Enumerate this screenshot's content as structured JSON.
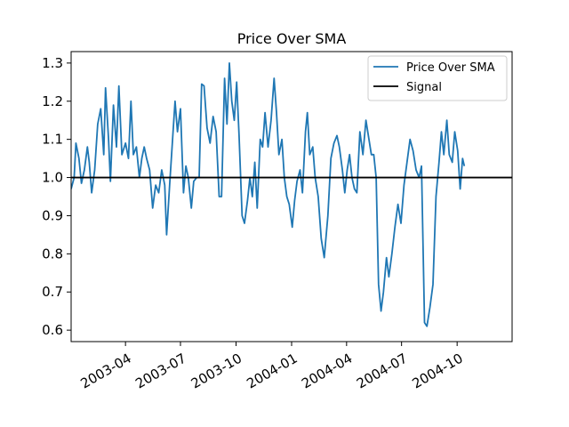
{
  "chart_data": {
    "type": "line",
    "title": "Price Over SMA",
    "xlabel": "",
    "ylabel": "",
    "x_axis_type": "date",
    "xlim": [
      "2003-01-01",
      "2004-12-31"
    ],
    "ylim": [
      0.57,
      1.33
    ],
    "x_ticks": [
      "2003-04",
      "2003-07",
      "2003-10",
      "2004-01",
      "2004-04",
      "2004-07",
      "2004-10"
    ],
    "y_ticks": [
      "0.6",
      "0.7",
      "0.8",
      "0.9",
      "1.0",
      "1.1",
      "1.2",
      "1.3"
    ],
    "grid": false,
    "legend_position": "top-right",
    "series": [
      {
        "name": "Price Over SMA",
        "color": "#1f77b4",
        "points": [
          [
            "2003-01-01",
            0.97
          ],
          [
            "2003-01-06",
            1.0
          ],
          [
            "2003-01-09",
            1.09
          ],
          [
            "2003-01-14",
            1.05
          ],
          [
            "2003-01-18",
            0.985
          ],
          [
            "2003-01-23",
            1.02
          ],
          [
            "2003-01-28",
            1.08
          ],
          [
            "2003-01-31",
            1.04
          ],
          [
            "2003-02-04",
            0.96
          ],
          [
            "2003-02-09",
            1.02
          ],
          [
            "2003-02-14",
            1.14
          ],
          [
            "2003-02-19",
            1.18
          ],
          [
            "2003-02-24",
            1.06
          ],
          [
            "2003-02-27",
            1.235
          ],
          [
            "2003-03-04",
            1.1
          ],
          [
            "2003-03-07",
            0.99
          ],
          [
            "2003-03-12",
            1.19
          ],
          [
            "2003-03-17",
            1.08
          ],
          [
            "2003-03-21",
            1.24
          ],
          [
            "2003-03-26",
            1.06
          ],
          [
            "2003-04-01",
            1.09
          ],
          [
            "2003-04-06",
            1.05
          ],
          [
            "2003-04-10",
            1.2
          ],
          [
            "2003-04-14",
            1.06
          ],
          [
            "2003-04-19",
            1.08
          ],
          [
            "2003-04-24",
            1.0
          ],
          [
            "2003-04-28",
            1.05
          ],
          [
            "2003-05-02",
            1.08
          ],
          [
            "2003-05-06",
            1.05
          ],
          [
            "2003-05-11",
            1.02
          ],
          [
            "2003-05-16",
            0.92
          ],
          [
            "2003-05-21",
            0.98
          ],
          [
            "2003-05-26",
            0.96
          ],
          [
            "2003-05-31",
            1.02
          ],
          [
            "2003-06-05",
            0.98
          ],
          [
            "2003-06-08",
            0.85
          ],
          [
            "2003-06-13",
            0.98
          ],
          [
            "2003-06-18",
            1.1
          ],
          [
            "2003-06-22",
            1.2
          ],
          [
            "2003-06-26",
            1.12
          ],
          [
            "2003-07-01",
            1.18
          ],
          [
            "2003-07-06",
            0.96
          ],
          [
            "2003-07-10",
            1.03
          ],
          [
            "2003-07-14",
            1.0
          ],
          [
            "2003-07-19",
            0.92
          ],
          [
            "2003-07-23",
            0.99
          ],
          [
            "2003-07-28",
            1.0
          ],
          [
            "2003-08-01",
            1.0
          ],
          [
            "2003-08-05",
            1.245
          ],
          [
            "2003-08-09",
            1.24
          ],
          [
            "2003-08-14",
            1.13
          ],
          [
            "2003-08-19",
            1.09
          ],
          [
            "2003-08-24",
            1.16
          ],
          [
            "2003-08-29",
            1.12
          ],
          [
            "2003-09-03",
            0.95
          ],
          [
            "2003-09-07",
            0.95
          ],
          [
            "2003-09-12",
            1.26
          ],
          [
            "2003-09-16",
            1.14
          ],
          [
            "2003-09-20",
            1.3
          ],
          [
            "2003-09-24",
            1.2
          ],
          [
            "2003-09-28",
            1.15
          ],
          [
            "2003-10-02",
            1.25
          ],
          [
            "2003-10-06",
            1.11
          ],
          [
            "2003-10-11",
            0.9
          ],
          [
            "2003-10-15",
            0.88
          ],
          [
            "2003-10-20",
            0.94
          ],
          [
            "2003-10-24",
            1.0
          ],
          [
            "2003-10-28",
            0.95
          ],
          [
            "2003-11-01",
            1.04
          ],
          [
            "2003-11-05",
            0.92
          ],
          [
            "2003-11-10",
            1.1
          ],
          [
            "2003-11-14",
            1.08
          ],
          [
            "2003-11-18",
            1.17
          ],
          [
            "2003-11-23",
            1.08
          ],
          [
            "2003-11-28",
            1.15
          ],
          [
            "2003-12-03",
            1.26
          ],
          [
            "2003-12-07",
            1.17
          ],
          [
            "2003-12-11",
            1.06
          ],
          [
            "2003-12-16",
            1.1
          ],
          [
            "2003-12-20",
            1.0
          ],
          [
            "2003-12-24",
            0.95
          ],
          [
            "2003-12-28",
            0.93
          ],
          [
            "2004-01-02",
            0.87
          ],
          [
            "2004-01-06",
            0.94
          ],
          [
            "2004-01-10",
            0.99
          ],
          [
            "2004-01-15",
            1.02
          ],
          [
            "2004-01-19",
            0.96
          ],
          [
            "2004-01-24",
            1.12
          ],
          [
            "2004-01-27",
            1.17
          ],
          [
            "2004-01-31",
            1.06
          ],
          [
            "2004-02-05",
            1.08
          ],
          [
            "2004-02-09",
            1.0
          ],
          [
            "2004-02-14",
            0.95
          ],
          [
            "2004-02-19",
            0.84
          ],
          [
            "2004-02-24",
            0.79
          ],
          [
            "2004-03-01",
            0.9
          ],
          [
            "2004-03-06",
            1.05
          ],
          [
            "2004-03-11",
            1.09
          ],
          [
            "2004-03-16",
            1.11
          ],
          [
            "2004-03-20",
            1.08
          ],
          [
            "2004-03-25",
            1.02
          ],
          [
            "2004-03-29",
            0.96
          ],
          [
            "2004-04-02",
            1.02
          ],
          [
            "2004-04-06",
            1.06
          ],
          [
            "2004-04-10",
            1.0
          ],
          [
            "2004-04-14",
            0.97
          ],
          [
            "2004-04-18",
            0.96
          ],
          [
            "2004-04-23",
            1.12
          ],
          [
            "2004-04-28",
            1.06
          ],
          [
            "2004-05-03",
            1.15
          ],
          [
            "2004-05-08",
            1.1
          ],
          [
            "2004-05-12",
            1.06
          ],
          [
            "2004-05-16",
            1.06
          ],
          [
            "2004-05-20",
            1.0
          ],
          [
            "2004-05-24",
            0.72
          ],
          [
            "2004-05-28",
            0.65
          ],
          [
            "2004-06-01",
            0.7
          ],
          [
            "2004-06-06",
            0.79
          ],
          [
            "2004-06-10",
            0.74
          ],
          [
            "2004-06-15",
            0.8
          ],
          [
            "2004-06-20",
            0.87
          ],
          [
            "2004-06-25",
            0.93
          ],
          [
            "2004-06-30",
            0.88
          ],
          [
            "2004-07-05",
            0.98
          ],
          [
            "2004-07-10",
            1.04
          ],
          [
            "2004-07-15",
            1.1
          ],
          [
            "2004-07-20",
            1.07
          ],
          [
            "2004-07-25",
            1.02
          ],
          [
            "2004-07-30",
            1.0
          ],
          [
            "2004-08-03",
            1.03
          ],
          [
            "2004-08-08",
            0.62
          ],
          [
            "2004-08-12",
            0.61
          ],
          [
            "2004-08-17",
            0.66
          ],
          [
            "2004-08-22",
            0.72
          ],
          [
            "2004-08-27",
            0.95
          ],
          [
            "2004-09-01",
            1.04
          ],
          [
            "2004-09-05",
            1.12
          ],
          [
            "2004-09-09",
            1.06
          ],
          [
            "2004-09-14",
            1.15
          ],
          [
            "2004-09-18",
            1.06
          ],
          [
            "2004-09-23",
            1.04
          ],
          [
            "2004-09-27",
            1.12
          ],
          [
            "2004-10-02",
            1.07
          ],
          [
            "2004-10-06",
            0.97
          ],
          [
            "2004-10-10",
            1.05
          ],
          [
            "2004-10-13",
            1.03
          ]
        ]
      },
      {
        "name": "Signal",
        "color": "#000000",
        "points": [
          [
            "2003-01-01",
            1.0
          ],
          [
            "2004-12-31",
            1.0
          ]
        ]
      }
    ]
  }
}
